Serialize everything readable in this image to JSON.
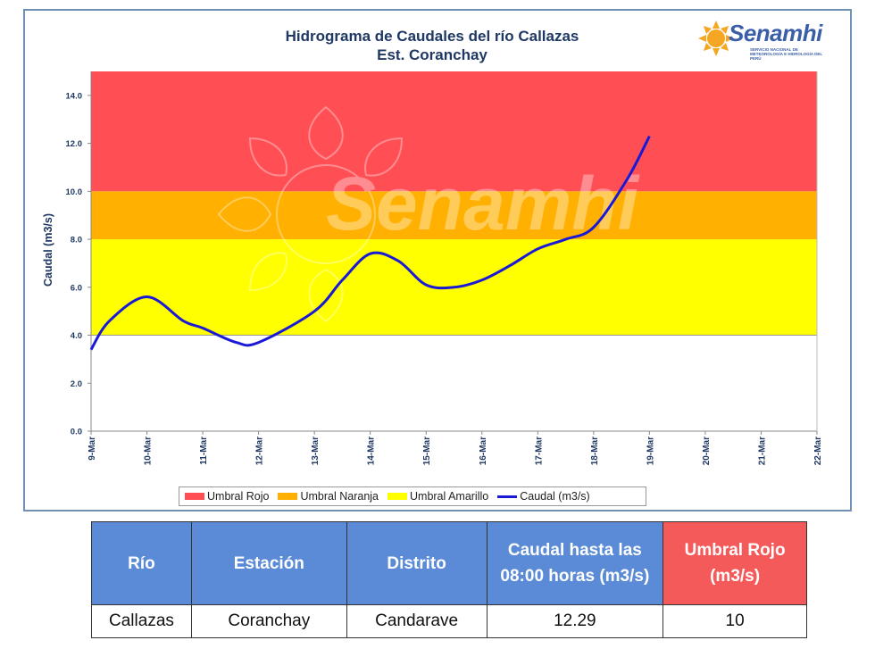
{
  "title_line1": "Hidrograma de Caudales del río Callazas",
  "title_line2": "Est. Coranchay",
  "logo": {
    "name": "Senamhi",
    "subtitle": "SERVICIO NACIONAL DE METEOROLOGÍA E HIDROLOGÍA DEL PERÚ"
  },
  "watermark": "Senamhi",
  "colors": {
    "rojo": "#ff4f55",
    "naranja": "#ffb000",
    "amarillo": "#ffff00",
    "caudal": "#1a1ad6",
    "header_blue": "#5b8bd6",
    "header_red": "#f55a5a"
  },
  "chart_data": {
    "type": "line",
    "ylabel": "Caudal (m3/s)",
    "xlabel": "",
    "ylim": [
      0,
      15
    ],
    "yticks": [
      "0.0",
      "2.0",
      "4.0",
      "6.0",
      "8.0",
      "10.0",
      "12.0",
      "14.0"
    ],
    "categories": [
      "9-Mar",
      "10-Mar",
      "11-Mar",
      "12-Mar",
      "13-Mar",
      "14-Mar",
      "15-Mar",
      "16-Mar",
      "17-Mar",
      "18-Mar",
      "19-Mar",
      "20-Mar",
      "21-Mar",
      "22-Mar"
    ],
    "thresholds": [
      {
        "name": "Umbral Rojo",
        "from": 10,
        "to": 15,
        "color": "#ff4f55"
      },
      {
        "name": "Umbral Naranja",
        "from": 8,
        "to": 10,
        "color": "#ffb000"
      },
      {
        "name": "Umbral Amarillo",
        "from": 4,
        "to": 8,
        "color": "#ffff00"
      }
    ],
    "series": [
      {
        "name": "Caudal (m3/s)",
        "color": "#1a1ad6",
        "x": [
          0,
          0.33,
          1.0,
          1.65,
          2.0,
          2.6,
          3.0,
          4.0,
          4.5,
          5.0,
          5.5,
          6.0,
          6.5,
          7.0,
          7.5,
          8.0,
          8.5,
          9.0,
          9.6,
          10.0
        ],
        "y": [
          3.4,
          4.6,
          5.6,
          4.6,
          4.3,
          3.7,
          3.7,
          5.0,
          6.3,
          7.4,
          7.1,
          6.1,
          6.0,
          6.3,
          6.9,
          7.6,
          8.0,
          8.5,
          10.5,
          12.3
        ]
      }
    ],
    "legend": [
      "Umbral Rojo",
      "Umbral Naranja",
      "Umbral Amarillo",
      "Caudal (m3/s)"
    ],
    "legend_position": "bottom"
  },
  "table": {
    "headers": [
      "Río",
      "Estación",
      "Distrito",
      "Caudal hasta las 08:00 horas (m3/s)",
      "Umbral  Rojo (m3/s)"
    ],
    "row": [
      "Callazas",
      "Coranchay",
      "Candarave",
      "12.29",
      "10"
    ]
  }
}
